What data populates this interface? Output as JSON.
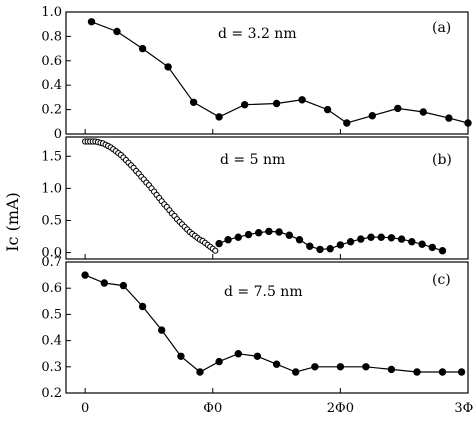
{
  "chart_data": [
    {
      "type": "line",
      "panel_label": "(a)",
      "annotation": "d = 3.2 nm",
      "ylim": [
        0,
        1.0
      ],
      "yticks": [
        0,
        0.2,
        0.4,
        0.6,
        0.8,
        1.0
      ],
      "ytick_labels": [
        "0",
        "0.2",
        "0.4",
        "0.6",
        "0.8",
        "1.0"
      ],
      "marker": "filled",
      "series": [
        {
          "x": [
            0.05,
            0.25,
            0.45,
            0.65,
            0.85,
            1.05,
            1.25,
            1.5,
            1.7,
            1.9,
            2.05,
            2.25,
            2.45,
            2.65,
            2.85,
            3.0
          ],
          "y": [
            0.92,
            0.84,
            0.7,
            0.55,
            0.26,
            0.14,
            0.24,
            0.25,
            0.28,
            0.2,
            0.09,
            0.15,
            0.21,
            0.18,
            0.13,
            0.09
          ]
        }
      ]
    },
    {
      "type": "line",
      "panel_label": "(b)",
      "annotation": "d = 5 nm",
      "ylim": [
        -0.1,
        1.8
      ],
      "yticks": [
        0,
        0.5,
        1.0,
        1.5
      ],
      "ytick_labels": [
        "0.0",
        "0.5",
        "1.0",
        "1.5"
      ],
      "marker": "open-then-filled",
      "series": [
        {
          "x": [
            0.0,
            0.02,
            0.04,
            0.06,
            0.08,
            0.1,
            0.12,
            0.14,
            0.16,
            0.18,
            0.2,
            0.22,
            0.24,
            0.26,
            0.28,
            0.3,
            0.32,
            0.34,
            0.36,
            0.38,
            0.4,
            0.42,
            0.44,
            0.46,
            0.48,
            0.5,
            0.52,
            0.54,
            0.56,
            0.58,
            0.6,
            0.62,
            0.64,
            0.66,
            0.68,
            0.7,
            0.72,
            0.74,
            0.76,
            0.78,
            0.8,
            0.82,
            0.84,
            0.86,
            0.88,
            0.9,
            0.92,
            0.94,
            0.96,
            0.98,
            1.0,
            1.02
          ],
          "y": [
            1.73,
            1.73,
            1.73,
            1.73,
            1.73,
            1.72,
            1.71,
            1.7,
            1.68,
            1.66,
            1.64,
            1.61,
            1.58,
            1.55,
            1.52,
            1.48,
            1.44,
            1.4,
            1.36,
            1.32,
            1.27,
            1.23,
            1.18,
            1.14,
            1.09,
            1.05,
            1.0,
            0.95,
            0.9,
            0.85,
            0.8,
            0.75,
            0.71,
            0.66,
            0.61,
            0.57,
            0.52,
            0.48,
            0.44,
            0.4,
            0.36,
            0.32,
            0.29,
            0.26,
            0.23,
            0.2,
            0.18,
            0.15,
            0.12,
            0.09,
            0.06,
            0.03
          ],
          "marker": "open"
        },
        {
          "x": [
            1.05,
            1.12,
            1.2,
            1.28,
            1.36,
            1.44,
            1.52,
            1.6,
            1.68,
            1.76,
            1.84,
            1.92,
            2.0,
            2.08,
            2.16,
            2.24,
            2.32,
            2.4,
            2.48,
            2.56,
            2.64,
            2.72,
            2.8
          ],
          "y": [
            0.14,
            0.2,
            0.24,
            0.28,
            0.31,
            0.33,
            0.32,
            0.27,
            0.2,
            0.1,
            0.05,
            0.06,
            0.12,
            0.17,
            0.21,
            0.24,
            0.24,
            0.23,
            0.21,
            0.17,
            0.13,
            0.08,
            0.03
          ],
          "marker": "filled"
        }
      ]
    },
    {
      "type": "line",
      "panel_label": "(c)",
      "annotation": "d = 7.5 nm",
      "ylim": [
        0.2,
        0.7
      ],
      "yticks": [
        0.2,
        0.3,
        0.4,
        0.5,
        0.6,
        0.7
      ],
      "ytick_labels": [
        "0.2",
        "0.3",
        "0.4",
        "0.5",
        "0.6",
        "0.7"
      ],
      "marker": "filled",
      "series": [
        {
          "x": [
            0.0,
            0.15,
            0.3,
            0.45,
            0.6,
            0.75,
            0.9,
            1.05,
            1.2,
            1.35,
            1.5,
            1.65,
            1.8,
            2.0,
            2.2,
            2.4,
            2.6,
            2.8,
            2.95
          ],
          "y": [
            0.65,
            0.62,
            0.61,
            0.53,
            0.44,
            0.34,
            0.28,
            0.32,
            0.35,
            0.34,
            0.31,
            0.28,
            0.3,
            0.3,
            0.3,
            0.29,
            0.28,
            0.28,
            0.28
          ]
        }
      ]
    }
  ],
  "x_axis": {
    "xlim": [
      -0.15,
      3.0
    ],
    "ticks": [
      0,
      1,
      2,
      3
    ],
    "tick_labels": [
      "0",
      "Φ0",
      "2Φ0",
      "3Φ0"
    ]
  },
  "ylabel": "Ic (mA)"
}
